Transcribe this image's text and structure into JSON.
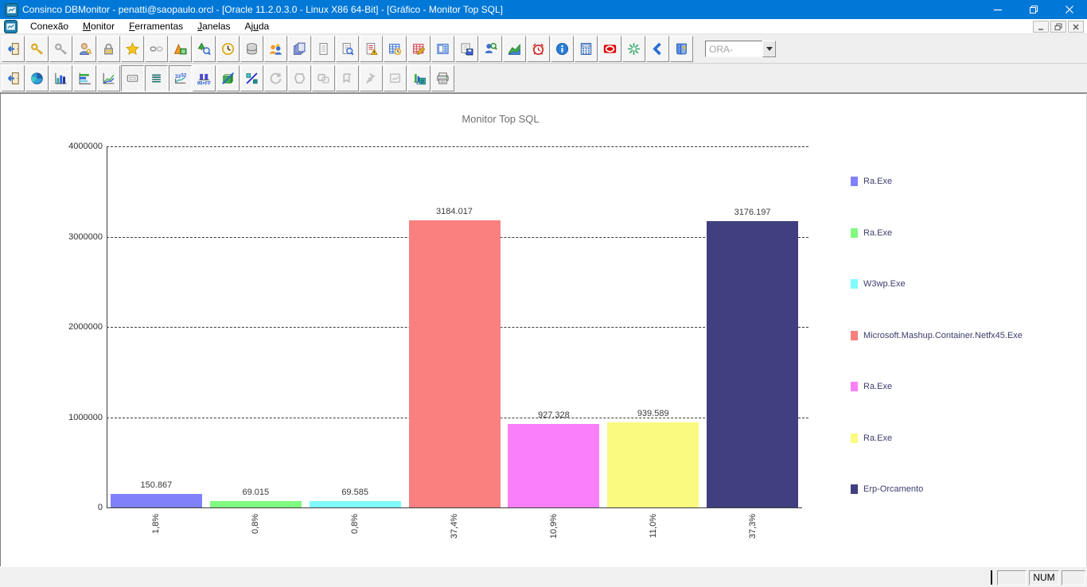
{
  "window": {
    "title": "Consinco DBMonitor - penatti@saopaulo.orcl - [Oracle 11.2.0.3.0 - Linux X86 64-Bit] - [Gráfico - Monitor Top SQL]",
    "caption_buttons": [
      "minimize",
      "restore",
      "close"
    ],
    "titlebar_color": "#0078d7"
  },
  "menu": {
    "items": [
      {
        "label": "Conexão",
        "underline": -1
      },
      {
        "label": "Monitor",
        "underline": 0
      },
      {
        "label": "Ferramentas",
        "underline": 0
      },
      {
        "label": "Janelas",
        "underline": 0
      },
      {
        "label": "Ajuda",
        "underline": 2
      }
    ],
    "mdi_buttons": [
      "minimize",
      "restore",
      "close"
    ]
  },
  "toolbar_main": {
    "buttons": [
      {
        "icon": "exit-door"
      },
      {
        "icon": "key-gold"
      },
      {
        "icon": "key-gray"
      },
      {
        "icon": "user-key"
      },
      {
        "icon": "lock"
      },
      {
        "icon": "star"
      },
      {
        "icon": "link-broken"
      },
      {
        "icon": "chart-wizard"
      },
      {
        "icon": "tree-search"
      },
      {
        "icon": "clock"
      },
      {
        "icon": "database"
      },
      {
        "icon": "users-sessions"
      },
      {
        "icon": "documents-stack"
      },
      {
        "icon": "document"
      },
      {
        "icon": "document-search"
      },
      {
        "icon": "document-alert"
      },
      {
        "icon": "table-clock"
      },
      {
        "icon": "table-edit"
      },
      {
        "icon": "list-panel"
      },
      {
        "icon": "list-save"
      },
      {
        "icon": "user-search"
      },
      {
        "icon": "area-chart"
      },
      {
        "icon": "alarm-clock"
      },
      {
        "icon": "info"
      },
      {
        "icon": "calculator"
      },
      {
        "icon": "oracle"
      },
      {
        "icon": "burst"
      },
      {
        "icon": "chevron-left"
      },
      {
        "icon": "help-book"
      }
    ],
    "ora_combo": {
      "value": "ORA-",
      "disabled": true
    }
  },
  "toolbar_chart": {
    "buttons": [
      {
        "icon": "exit-door"
      },
      {
        "icon": "pie-chart"
      },
      {
        "icon": "bar-chart"
      },
      {
        "icon": "hbar-chart"
      },
      {
        "icon": "line-chart"
      },
      {
        "icon": "marks-toggle",
        "pressed": true
      },
      {
        "icon": "legend-toggle",
        "pressed": true
      },
      {
        "icon": "axis-values",
        "pressed": true
      },
      {
        "icon": "bar-values"
      },
      {
        "icon": "chart-3d"
      },
      {
        "icon": "percent-3d"
      },
      {
        "icon": "rotate",
        "disabled": true
      },
      {
        "icon": "ellipse",
        "disabled": true
      },
      {
        "icon": "shapes",
        "disabled": true
      },
      {
        "icon": "copy-chart",
        "disabled": true
      },
      {
        "icon": "pin",
        "disabled": true
      },
      {
        "icon": "zoom-chart",
        "disabled": true
      },
      {
        "icon": "export-chart"
      },
      {
        "icon": "printer"
      }
    ]
  },
  "chart_data": {
    "type": "bar",
    "title": "Monitor Top SQL",
    "categories": [
      "Ra.Exe",
      "Ra.Exe",
      "W3wp.Exe",
      "Microsoft.Mashup.Container.Netfx45.Exe",
      "Ra.Exe",
      "Ra.Exe",
      "Erp-Orcamento"
    ],
    "values": [
      150867,
      69015,
      69585,
      3184017,
      927328,
      939589,
      3176197
    ],
    "value_labels": [
      "150.867",
      "69.015",
      "69.585",
      "3184.017",
      "927.328",
      "939.589",
      "3176.197"
    ],
    "percent_labels": [
      "1,8%",
      "0,8%",
      "0,8%",
      "37,4%",
      "10,9%",
      "11,0%",
      "37,3%"
    ],
    "bar_colors": [
      "#8080FA",
      "#80FA80",
      "#80FAFA",
      "#FA8080",
      "#FA80FA",
      "#FAFA80",
      "#404080"
    ],
    "ylim": [
      0,
      4000000
    ],
    "yticks": [
      0,
      1000000,
      2000000,
      3000000,
      4000000
    ],
    "ytick_labels": [
      "0",
      "1000000",
      "2000000",
      "3000000",
      "4000000"
    ],
    "grid": "horizontal-dashed",
    "legend_position": "right",
    "legend": [
      {
        "label": "Ra.Exe",
        "color": "#8080FA"
      },
      {
        "label": "Ra.Exe",
        "color": "#80FA80"
      },
      {
        "label": "W3wp.Exe",
        "color": "#80FAFA"
      },
      {
        "label": "Microsoft.Mashup.Container.Netfx45.Exe",
        "color": "#FA8080"
      },
      {
        "label": "Ra.Exe",
        "color": "#FA80FA"
      },
      {
        "label": "Ra.Exe",
        "color": "#FAFA80"
      },
      {
        "label": "Erp-Orcamento",
        "color": "#404080"
      }
    ]
  },
  "statusbar": {
    "num_indicator": "NUM"
  }
}
